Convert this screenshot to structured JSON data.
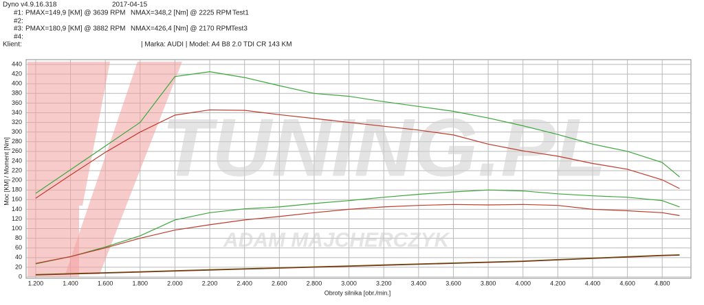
{
  "header": {
    "version": "Dyno v4.9.16.318",
    "date": "2017-04-15",
    "runs": [
      {
        "id": "#1:",
        "pmax": "PMAX=149,9 [KM] @ 3639 RPM",
        "nmax": "NMAX=348,2 [Nm] @ 2225 RPM",
        "test": "Test1"
      },
      {
        "id": "#2:"
      },
      {
        "id": "#3:",
        "pmax": "PMAX=180,9 [KM] @ 3882 RPM",
        "nmax": "NMAX=426,4 [Nm] @ 2170 RPM",
        "test": "Test3"
      },
      {
        "id": "#4:"
      }
    ],
    "client": "Klient:",
    "vehicle": "| Marka: AUDI | Model: A4 B8 2.0 TDI CR 143 KM"
  },
  "watermark": {
    "brand": "TUNING.PL",
    "author": "ADAM MAJCHERCZYK"
  },
  "chart_data": {
    "type": "line",
    "x_label": "Obroty silnika [obr./min.]",
    "y_label": "Moc [KM] / Moment [Nm]",
    "x": [
      1200,
      1400,
      1600,
      1800,
      2000,
      2200,
      2400,
      2600,
      2800,
      3000,
      3200,
      3400,
      3600,
      3800,
      4000,
      4200,
      4400,
      4600,
      4800,
      4900
    ],
    "series": [
      {
        "color": "#3aa63a",
        "values": [
          173,
          222,
          271,
          320,
          415,
          425,
          413,
          396,
          380,
          374,
          363,
          353,
          343,
          329,
          313,
          295,
          275,
          260,
          237,
          207
        ]
      },
      {
        "color": "#c0392b",
        "values": [
          163,
          211,
          258,
          300,
          335,
          346,
          345,
          336,
          328,
          320,
          312,
          304,
          294,
          275,
          261,
          250,
          235,
          223,
          201,
          183
        ]
      },
      {
        "color": "#3aa63a",
        "values": [
          27,
          42,
          62,
          85,
          118,
          133,
          141,
          145,
          152,
          158,
          165,
          171,
          176,
          180,
          178,
          172,
          168,
          165,
          158,
          145
        ]
      },
      {
        "color": "#c0392b",
        "values": [
          28,
          42,
          60,
          80,
          97,
          108,
          118,
          125,
          133,
          140,
          145,
          148,
          150,
          149,
          150,
          148,
          140,
          137,
          133,
          127
        ]
      },
      {
        "color": "#6b6b10",
        "values": [
          5,
          7,
          9,
          11,
          13,
          15,
          17,
          19,
          21,
          23,
          25,
          27,
          29,
          31,
          33,
          36,
          39,
          42,
          45,
          46
        ]
      },
      {
        "color": "#7a2a10",
        "values": [
          4,
          6,
          8,
          10,
          12,
          14,
          16,
          18,
          20,
          22,
          24,
          26,
          28,
          30,
          32,
          35,
          38,
          41,
          44,
          45
        ]
      }
    ],
    "xlim": [
      1145,
      4965
    ],
    "ylim": [
      0,
      450
    ],
    "xticks": [
      {
        "value": 1200,
        "label": "1.200"
      },
      {
        "value": 1400,
        "label": "1.400"
      },
      {
        "value": 1600,
        "label": "1.600"
      },
      {
        "value": 1800,
        "label": "1.800"
      },
      {
        "value": 2000,
        "label": "2.000"
      },
      {
        "value": 2200,
        "label": "2.200"
      },
      {
        "value": 2400,
        "label": "2.400"
      },
      {
        "value": 2600,
        "label": "2.600"
      },
      {
        "value": 2800,
        "label": "2.800"
      },
      {
        "value": 3000,
        "label": "3.000"
      },
      {
        "value": 3200,
        "label": "3.200"
      },
      {
        "value": 3400,
        "label": "3.400"
      },
      {
        "value": 3600,
        "label": "3.600"
      },
      {
        "value": 3800,
        "label": "3.800"
      },
      {
        "value": 4000,
        "label": "4.000"
      },
      {
        "value": 4200,
        "label": "4.200"
      },
      {
        "value": 4400,
        "label": "4.400"
      },
      {
        "value": 4600,
        "label": "4.600"
      },
      {
        "value": 4800,
        "label": "4.800"
      }
    ],
    "yticks": [
      0,
      20,
      40,
      60,
      80,
      100,
      120,
      140,
      160,
      180,
      200,
      220,
      240,
      260,
      280,
      300,
      320,
      340,
      360,
      380,
      400,
      420,
      440
    ],
    "grid": true
  }
}
